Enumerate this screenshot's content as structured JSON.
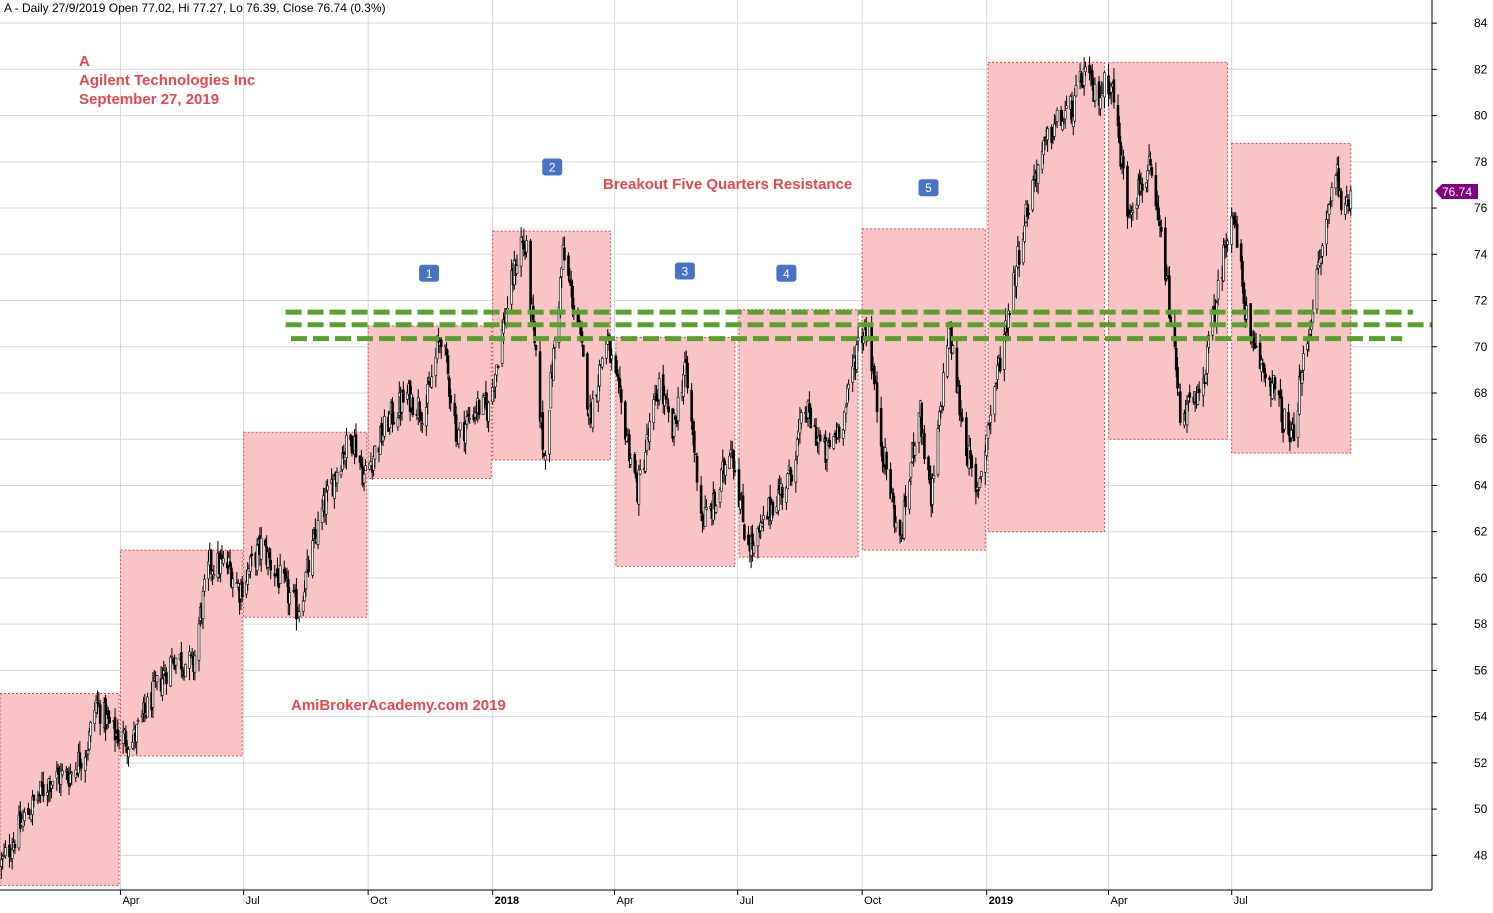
{
  "header": {
    "text": "A - Daily 27/9/2019 Open 77.02, Hi 77.27, Lo 76.39, Close 76.74 (0.3%)"
  },
  "title": {
    "line1": "A",
    "line2": "Agilent Technologies Inc",
    "line3": "September 27, 2019"
  },
  "annotation": "Breakout Five Quarters Resistance",
  "watermark": "AmiBrokerAcademy.com  2019",
  "badges": [
    "1",
    "2",
    "3",
    "4",
    "5"
  ],
  "price_label": "76.74",
  "colors": {
    "box_fill": "#f9c4c6",
    "box_border": "#e0464e",
    "resistance": "#5aa02c",
    "badge": "#4a72c4",
    "price_tag": "#800080",
    "grid": "#d9d9d9",
    "title": "#e8474f"
  },
  "chart_data": {
    "type": "candlestick",
    "ylim": [
      46.5,
      85
    ],
    "y_ticks": [
      48,
      50,
      52,
      54,
      56,
      58,
      60,
      62,
      64,
      66,
      68,
      70,
      72,
      74,
      76,
      78,
      80,
      82,
      84
    ],
    "x_start": "2017-01-02",
    "x_end": "2019-11-26",
    "x_ticks": [
      {
        "date": "2017-04-01",
        "label": "Apr",
        "bold": false
      },
      {
        "date": "2017-07-01",
        "label": "Jul",
        "bold": false
      },
      {
        "date": "2017-10-01",
        "label": "Oct",
        "bold": false
      },
      {
        "date": "2018-01-01",
        "label": "2018",
        "bold": true
      },
      {
        "date": "2018-04-01",
        "label": "Apr",
        "bold": false
      },
      {
        "date": "2018-07-01",
        "label": "Jul",
        "bold": false
      },
      {
        "date": "2018-10-01",
        "label": "Oct",
        "bold": false
      },
      {
        "date": "2019-01-01",
        "label": "2019",
        "bold": true
      },
      {
        "date": "2019-04-01",
        "label": "Apr",
        "bold": false
      },
      {
        "date": "2019-07-01",
        "label": "Jul",
        "bold": false
      }
    ],
    "quarter_ranges": [
      {
        "start": "2017-01-02",
        "end": "2017-03-31",
        "low": 46.7,
        "high": 55.0
      },
      {
        "start": "2017-04-01",
        "end": "2017-06-30",
        "low": 52.3,
        "high": 61.2
      },
      {
        "start": "2017-07-01",
        "end": "2017-09-30",
        "low": 58.3,
        "high": 66.3
      },
      {
        "start": "2017-10-01",
        "end": "2017-12-31",
        "low": 64.3,
        "high": 70.9
      },
      {
        "start": "2018-01-01",
        "end": "2018-03-29",
        "low": 65.1,
        "high": 75.0
      },
      {
        "start": "2018-04-02",
        "end": "2018-06-29",
        "low": 60.5,
        "high": 70.4
      },
      {
        "start": "2018-07-02",
        "end": "2018-09-28",
        "low": 60.9,
        "high": 71.6
      },
      {
        "start": "2018-10-01",
        "end": "2018-12-31",
        "low": 61.2,
        "high": 75.1
      },
      {
        "start": "2019-01-02",
        "end": "2019-03-29",
        "low": 62.0,
        "high": 82.3
      },
      {
        "start": "2019-04-01",
        "end": "2019-06-28",
        "low": 66.0,
        "high": 82.3
      },
      {
        "start": "2019-07-01",
        "end": "2019-09-27",
        "low": 65.4,
        "high": 78.8
      }
    ],
    "resistance_lines": [
      {
        "value": 71.5,
        "start": "2017-08-01",
        "end": "2019-11-12"
      },
      {
        "value": 70.95,
        "start": "2017-08-01",
        "end": "2019-11-26"
      },
      {
        "value": 70.35,
        "start": "2017-08-05",
        "end": "2019-11-04"
      }
    ],
    "badge_points": [
      {
        "label": "1",
        "date": "2017-11-15",
        "value": 73.2
      },
      {
        "label": "2",
        "date": "2018-02-14",
        "value": 77.8
      },
      {
        "label": "3",
        "date": "2018-05-23",
        "value": 73.3
      },
      {
        "label": "4",
        "date": "2018-08-06",
        "value": 73.2
      },
      {
        "label": "5",
        "date": "2018-11-19",
        "value": 76.9
      }
    ],
    "price_path": [
      [
        "2017-01-03",
        47.6
      ],
      [
        "2017-01-20",
        49.6
      ],
      [
        "2017-02-08",
        51.3
      ],
      [
        "2017-02-23",
        51.5
      ],
      [
        "2017-03-08",
        52.8
      ],
      [
        "2017-03-14",
        54.6
      ],
      [
        "2017-03-27",
        53.3
      ],
      [
        "2017-04-10",
        52.9
      ],
      [
        "2017-04-24",
        54.8
      ],
      [
        "2017-05-10",
        56.6
      ],
      [
        "2017-05-25",
        56.2
      ],
      [
        "2017-05-30",
        58.4
      ],
      [
        "2017-06-06",
        60.6
      ],
      [
        "2017-06-20",
        60.5
      ],
      [
        "2017-06-28",
        59.5
      ],
      [
        "2017-07-14",
        61.4
      ],
      [
        "2017-07-25",
        60.2
      ],
      [
        "2017-08-10",
        58.6
      ],
      [
        "2017-08-28",
        62.8
      ],
      [
        "2017-09-12",
        65.4
      ],
      [
        "2017-09-20",
        66.1
      ],
      [
        "2017-09-28",
        64.4
      ],
      [
        "2017-10-16",
        66.8
      ],
      [
        "2017-10-30",
        67.9
      ],
      [
        "2017-11-12",
        67.2
      ],
      [
        "2017-11-24",
        70.6
      ],
      [
        "2017-12-06",
        66.1
      ],
      [
        "2017-12-20",
        67.4
      ],
      [
        "2017-12-29",
        67.3
      ],
      [
        "2018-01-10",
        71.3
      ],
      [
        "2018-01-22",
        74.6
      ],
      [
        "2018-01-26",
        74.0
      ],
      [
        "2018-02-08",
        65.2
      ],
      [
        "2018-02-22",
        74.0
      ],
      [
        "2018-03-05",
        71.0
      ],
      [
        "2018-03-14",
        67.0
      ],
      [
        "2018-03-26",
        70.4
      ],
      [
        "2018-04-09",
        66.5
      ],
      [
        "2018-04-18",
        63.8
      ],
      [
        "2018-05-04",
        68.4
      ],
      [
        "2018-05-14",
        66.2
      ],
      [
        "2018-05-23",
        69.2
      ],
      [
        "2018-06-05",
        62.5
      ],
      [
        "2018-06-15",
        63.2
      ],
      [
        "2018-06-26",
        66.0
      ],
      [
        "2018-07-06",
        62.1
      ],
      [
        "2018-07-13",
        61.2
      ],
      [
        "2018-07-26",
        63.2
      ],
      [
        "2018-08-08",
        64.3
      ],
      [
        "2018-08-20",
        67.3
      ],
      [
        "2018-09-04",
        65.3
      ],
      [
        "2018-09-18",
        67.1
      ],
      [
        "2018-09-28",
        70.3
      ],
      [
        "2018-10-05",
        70.9
      ],
      [
        "2018-10-15",
        66.0
      ],
      [
        "2018-10-29",
        61.4
      ],
      [
        "2018-11-12",
        67.5
      ],
      [
        "2018-11-21",
        63.2
      ],
      [
        "2018-12-04",
        70.9
      ],
      [
        "2018-12-12",
        67.5
      ],
      [
        "2018-12-24",
        63.4
      ],
      [
        "2019-01-10",
        69.2
      ],
      [
        "2019-01-28",
        75.2
      ],
      [
        "2019-02-06",
        77.5
      ],
      [
        "2019-02-20",
        79.6
      ],
      [
        "2019-03-06",
        80.3
      ],
      [
        "2019-03-14",
        81.9
      ],
      [
        "2019-03-22",
        80.8
      ],
      [
        "2019-04-03",
        81.6
      ],
      [
        "2019-04-15",
        76.0
      ],
      [
        "2019-05-01",
        77.6
      ],
      [
        "2019-05-13",
        73.5
      ],
      [
        "2019-05-24",
        67.2
      ],
      [
        "2019-06-07",
        67.6
      ],
      [
        "2019-06-21",
        72.4
      ],
      [
        "2019-07-01",
        76.2
      ],
      [
        "2019-07-15",
        70.0
      ],
      [
        "2019-07-31",
        68.4
      ],
      [
        "2019-08-14",
        65.8
      ],
      [
        "2019-08-26",
        70.4
      ],
      [
        "2019-09-06",
        74.3
      ],
      [
        "2019-09-16",
        77.8
      ],
      [
        "2019-09-23",
        75.6
      ],
      [
        "2019-09-27",
        76.74
      ]
    ]
  }
}
